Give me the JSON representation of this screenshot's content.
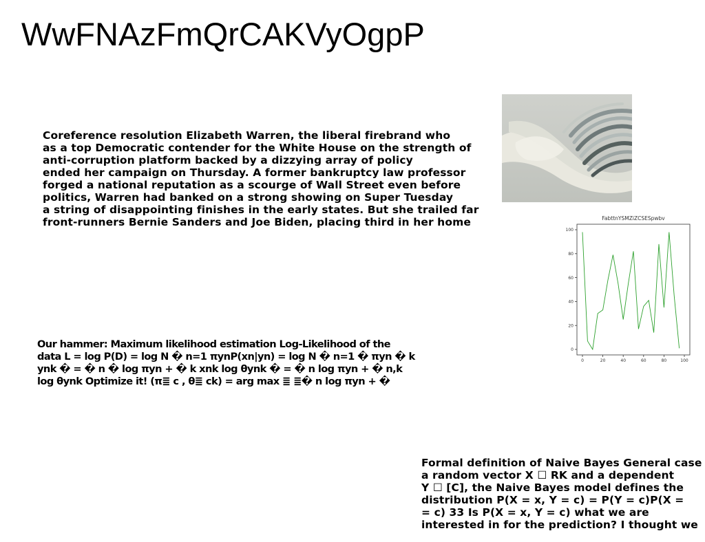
{
  "title": "WwFNAzFmQrCAKVyOgpP",
  "paragraph1": {
    "lines": [
      "Coreference resolution Elizabeth Warren, the liberal firebrand who",
      "as a top Democratic contender for the White House on the strength of",
      "anti-corruption platform backed by a dizzying array of policy",
      "ended her campaign on Thursday. A former bankruptcy law professor",
      "forged a national reputation as a scourge of Wall Street even before",
      "politics, Warren had banked on a strong showing on Super Tuesday",
      "a string of disappointing finishes in the early states. But she trailed far",
      "front-runners Bernie Sanders and Joe Biden, placing third in her home"
    ]
  },
  "paragraph2": {
    "lines": [
      "Our hammer: Maximum likelihood estimation Log-Likelihood of the",
      "data L = log P(D) = log N � n=1 πynP(xn|yn) = log N � n=1 � πyn � k",
      "ynk � = � n � log πyn + � k xnk log θynk � = � n log πyn + � n,k",
      "log θynk Optimize it! (π≣ c , θ≣ ck) = arg max ≣ ≣� n log πyn + �"
    ]
  },
  "paragraph3": {
    "lines": [
      "Formal definition of Naive Bayes General case",
      "a random vector X ☐ RK and a dependent",
      "Y ☐ [C], the Naive Bayes model defines the",
      "distribution P(X = x, Y = c) = P(Y = c)P(X =",
      "= c) 33 Is P(X = x, Y = c) what we are",
      "interested in for the prediction? I thought we"
    ]
  },
  "photo": {
    "subject": "abstract white and grey wavy ribbon sculpture",
    "background_color": "#c9ccc6"
  },
  "chart_data": {
    "type": "line",
    "title": "FabttnYSMZiZCSESpwbv",
    "x": [
      0,
      5,
      10,
      15,
      20,
      25,
      30,
      35,
      40,
      45,
      50,
      55,
      60,
      65,
      70,
      75,
      80,
      85,
      90,
      95,
      100
    ],
    "y": [
      98,
      7,
      0,
      30,
      33,
      58,
      79,
      55,
      25,
      55,
      82,
      17,
      36,
      41,
      14,
      88,
      35,
      98,
      45,
      1,
      null
    ],
    "xlim": [
      0,
      100
    ],
    "ylim": [
      0,
      100
    ],
    "xticks": [
      0,
      20,
      40,
      60,
      80,
      100
    ],
    "yticks": [
      0,
      20,
      40,
      60,
      80,
      100
    ],
    "xlabel": "",
    "ylabel": "",
    "line_color": "#2ca02c",
    "grid": false,
    "legend": "none"
  }
}
